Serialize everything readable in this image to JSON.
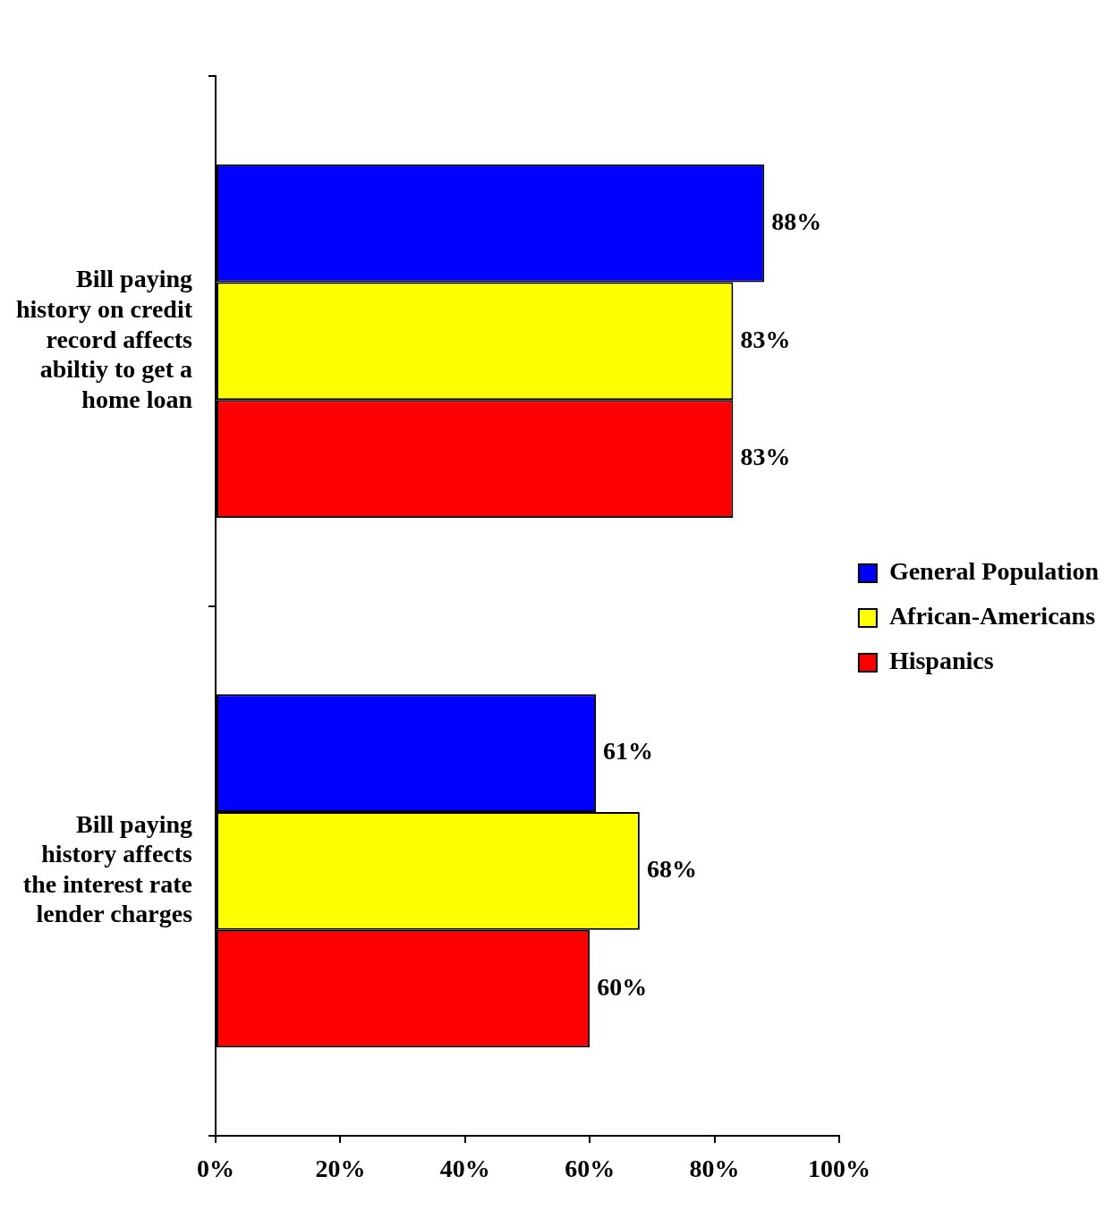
{
  "chart_data": {
    "type": "bar",
    "orientation": "horizontal",
    "categories": [
      "Bill paying history on credit record affects abiltiy to get a home loan",
      "Bill paying history affects the interest rate lender charges"
    ],
    "series": [
      {
        "name": "General Population",
        "color": "#0000ff",
        "values": [
          88,
          61
        ],
        "value_labels": [
          "88%",
          "61%"
        ]
      },
      {
        "name": "African-Americans",
        "color": "#ffff00",
        "values": [
          83,
          68
        ],
        "value_labels": [
          "83%",
          "68%"
        ]
      },
      {
        "name": "Hispanics",
        "color": "#ff0000",
        "values": [
          83,
          60
        ],
        "value_labels": [
          "83%",
          "60%"
        ]
      }
    ],
    "xlim": [
      0,
      100
    ],
    "xticks": [
      {
        "value": 0,
        "label": "0%"
      },
      {
        "value": 20,
        "label": "20%"
      },
      {
        "value": 40,
        "label": "40%"
      },
      {
        "value": 60,
        "label": "60%"
      },
      {
        "value": 80,
        "label": "80%"
      },
      {
        "value": 100,
        "label": "100%"
      }
    ],
    "grid": false,
    "legend": "right"
  }
}
